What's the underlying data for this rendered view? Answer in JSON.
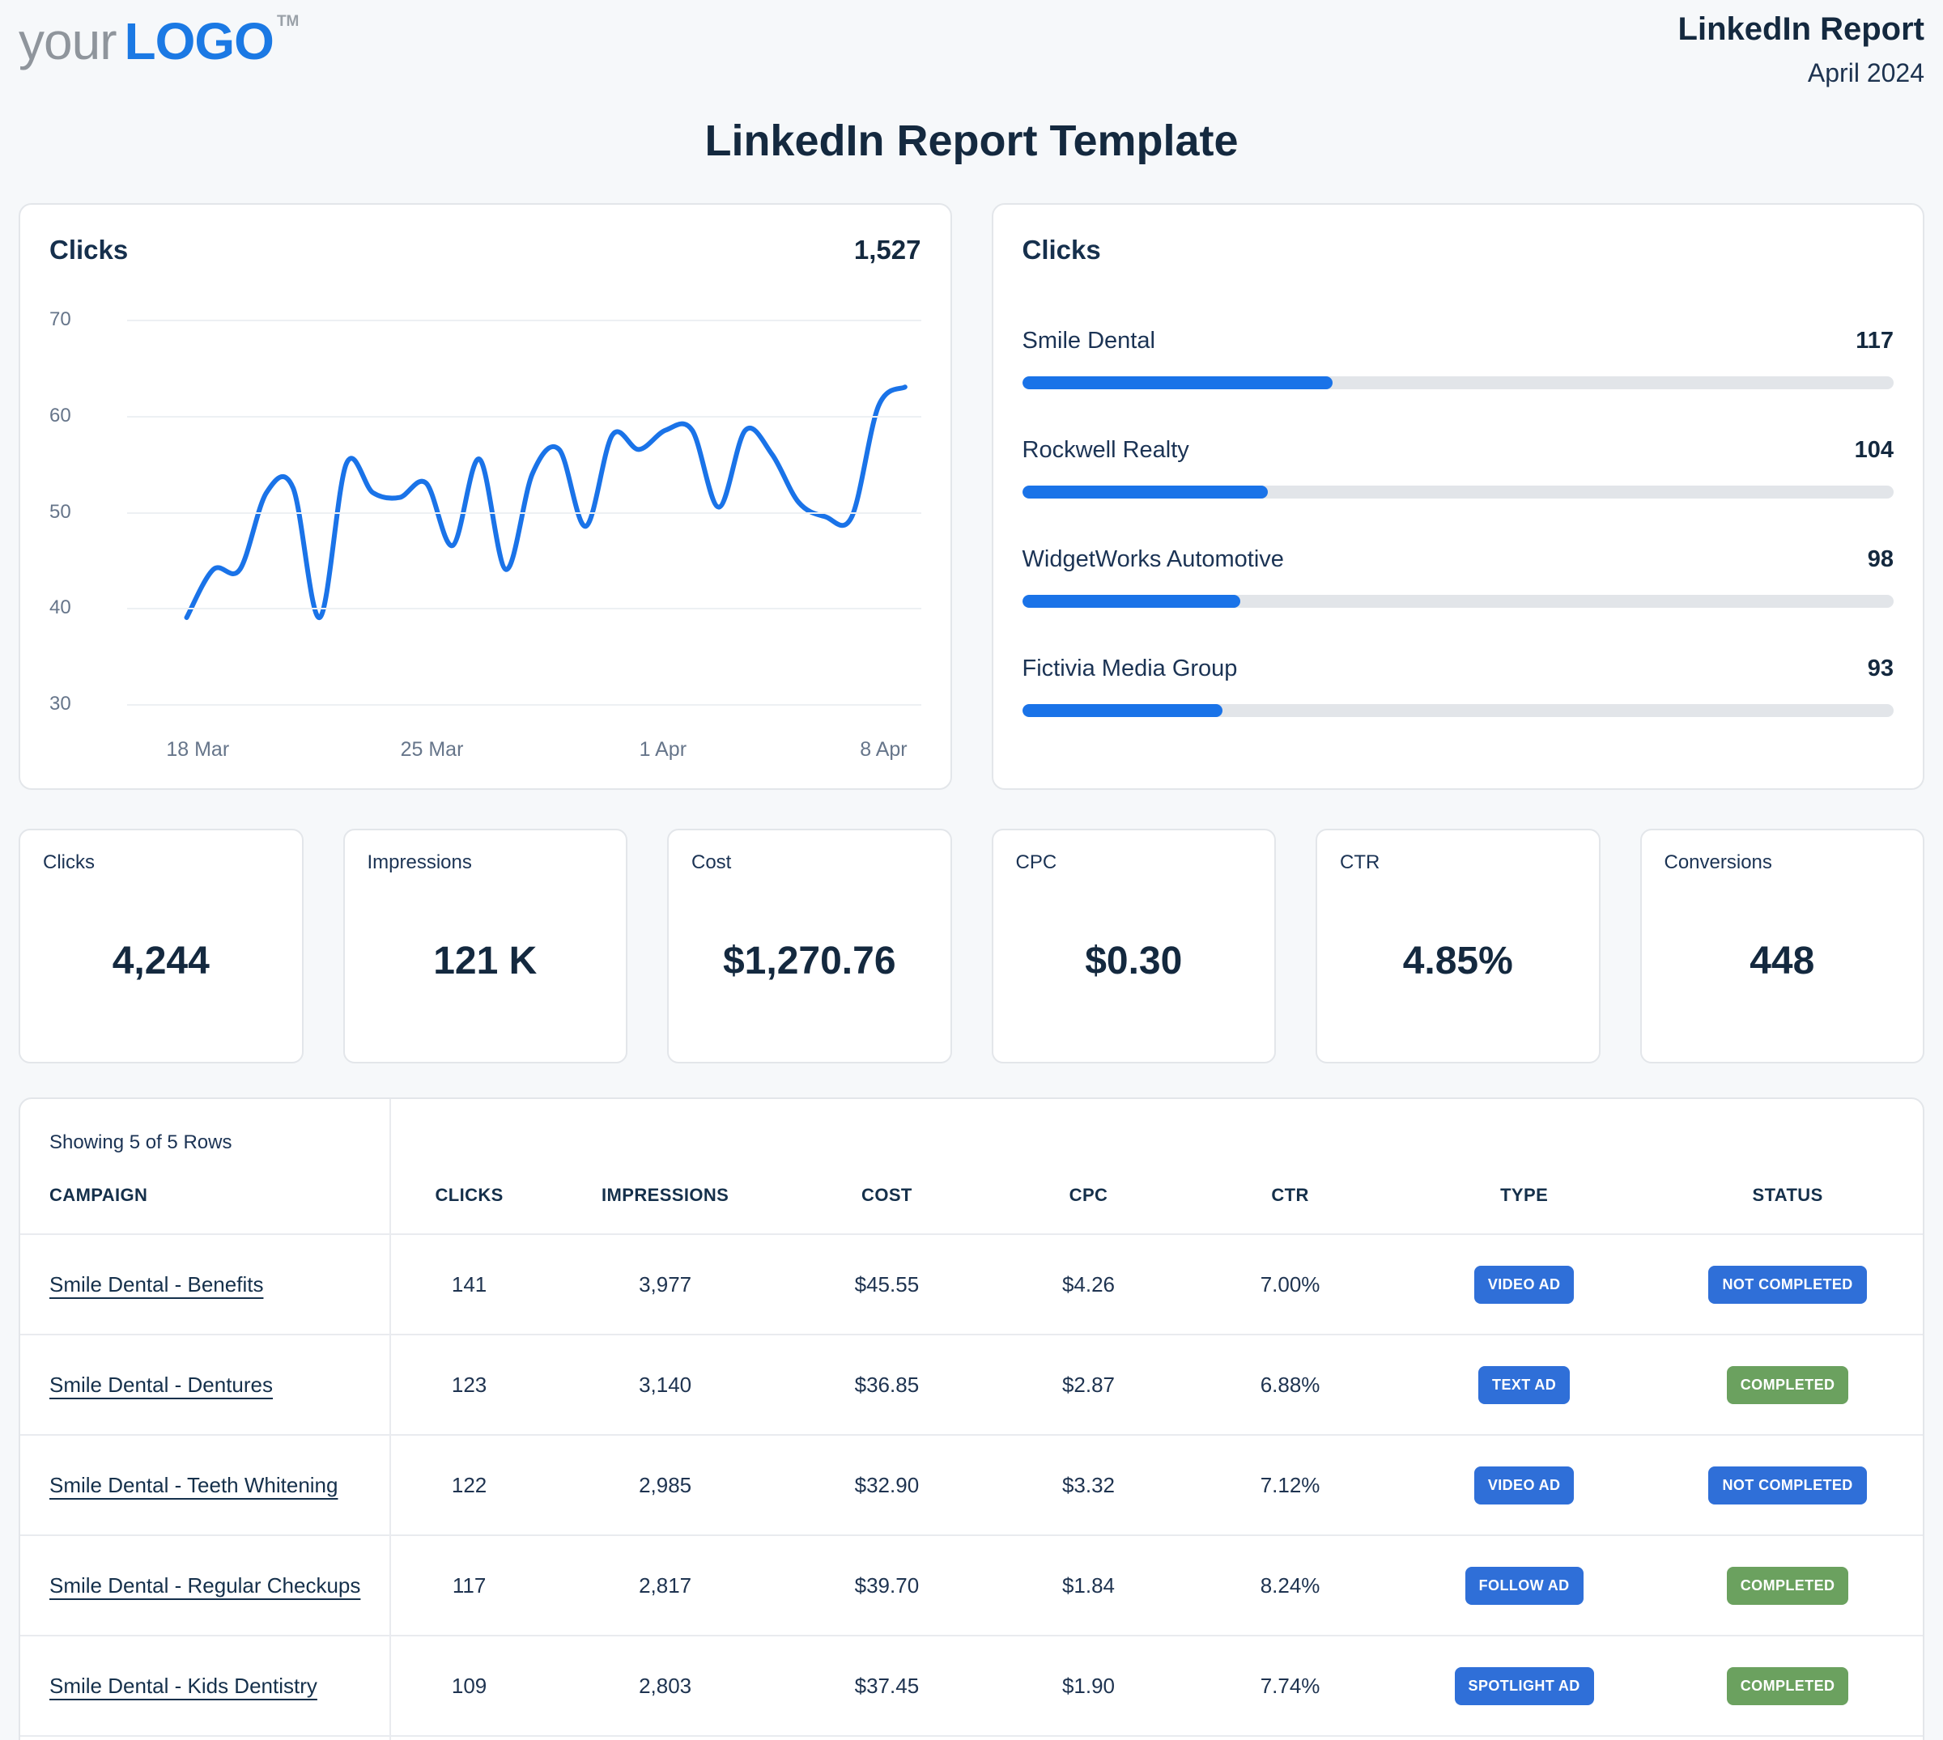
{
  "header": {
    "logo_your": "your",
    "logo_brand": "LOGO",
    "logo_tm": "TM",
    "report_name": "LinkedIn Report",
    "report_period": "April 2024"
  },
  "page_title": "LinkedIn Report Template",
  "colors": {
    "accent_blue": "#1a73e8",
    "badge_blue": "#2f6fd8",
    "badge_green": "#6ba15f",
    "navy": "#14293f",
    "track_gray": "#e2e5e9",
    "grid_gray": "#edf0f3"
  },
  "chart_data": [
    {
      "type": "line",
      "title": "Clicks",
      "total": "1,527",
      "series_name": "Clicks",
      "values": [
        39,
        44,
        44,
        52,
        52.5,
        39,
        55,
        52,
        51.5,
        53,
        46.5,
        55.5,
        44,
        54,
        56.5,
        48.5,
        58,
        56.5,
        58.5,
        58.5,
        50.5,
        58.5,
        56,
        51,
        49.5,
        49.5,
        61,
        63
      ],
      "ylim": [
        30,
        70
      ],
      "y_ticks": [
        70,
        60,
        50,
        40,
        30
      ],
      "x_ticks": [
        {
          "label": "18 Mar",
          "pos": 0.089
        },
        {
          "label": "25 Mar",
          "pos": 0.384
        },
        {
          "label": "1 Apr",
          "pos": 0.675
        },
        {
          "label": "8 Apr",
          "pos": 0.953
        }
      ],
      "grid": true,
      "line_color": "#1a73e8",
      "line_span": [
        0.075,
        0.98
      ]
    },
    {
      "type": "bar",
      "title": "Clicks",
      "orientation": "horizontal",
      "bar_color": "#1a73e8",
      "items": [
        {
          "label": "Smile Dental",
          "value": "117",
          "fill_pct": 35.6
        },
        {
          "label": "Rockwell Realty",
          "value": "104",
          "fill_pct": 28.2
        },
        {
          "label": "WidgetWorks Automotive",
          "value": "98",
          "fill_pct": 25.0
        },
        {
          "label": "Fictivia Media Group",
          "value": "93",
          "fill_pct": 23.0
        }
      ]
    }
  ],
  "kpis": [
    {
      "label": "Clicks",
      "value": "4,244"
    },
    {
      "label": "Impressions",
      "value": "121 K"
    },
    {
      "label": "Cost",
      "value": "$1,270.76"
    },
    {
      "label": "CPC",
      "value": "$0.30"
    },
    {
      "label": "CTR",
      "value": "4.85%"
    },
    {
      "label": "Conversions",
      "value": "448"
    }
  ],
  "table": {
    "showing": "Showing 5 of 5 Rows",
    "columns": [
      "CAMPAIGN",
      "CLICKS",
      "IMPRESSIONS",
      "COST",
      "CPC",
      "CTR",
      "TYPE",
      "STATUS"
    ],
    "rows": [
      {
        "campaign": "Smile Dental - Benefits",
        "clicks": "141",
        "impressions": "3,977",
        "cost": "$45.55",
        "cpc": "$4.26",
        "ctr": "7.00%",
        "type": "VIDEO AD",
        "type_color": "#2f6fd8",
        "status": "NOT COMPLETED",
        "status_color": "#2f6fd8"
      },
      {
        "campaign": "Smile Dental - Dentures",
        "clicks": "123",
        "impressions": "3,140",
        "cost": "$36.85",
        "cpc": "$2.87",
        "ctr": "6.88%",
        "type": "TEXT AD",
        "type_color": "#2f6fd8",
        "status": "COMPLETED",
        "status_color": "#6ba15f"
      },
      {
        "campaign": "Smile Dental - Teeth Whitening",
        "clicks": "122",
        "impressions": "2,985",
        "cost": "$32.90",
        "cpc": "$3.32",
        "ctr": "7.12%",
        "type": "VIDEO AD",
        "type_color": "#2f6fd8",
        "status": "NOT COMPLETED",
        "status_color": "#2f6fd8"
      },
      {
        "campaign": "Smile Dental - Regular Checkups",
        "clicks": "117",
        "impressions": "2,817",
        "cost": "$39.70",
        "cpc": "$1.84",
        "ctr": "8.24%",
        "type": "FOLLOW AD",
        "type_color": "#2f6fd8",
        "status": "COMPLETED",
        "status_color": "#6ba15f"
      },
      {
        "campaign": "Smile Dental - Kids Dentistry",
        "clicks": "109",
        "impressions": "2,803",
        "cost": "$37.45",
        "cpc": "$1.90",
        "ctr": "7.74%",
        "type": "SPOTLIGHT AD",
        "type_color": "#2f6fd8",
        "status": "COMPLETED",
        "status_color": "#6ba15f"
      }
    ]
  }
}
